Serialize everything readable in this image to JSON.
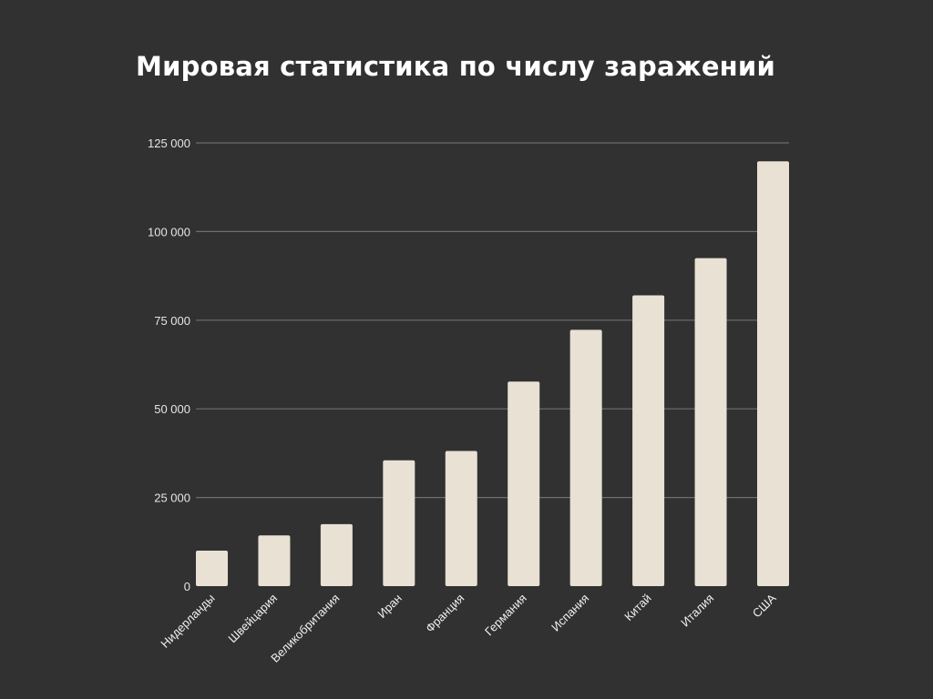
{
  "chart_data": {
    "type": "bar",
    "title": "Мировая статистика по числу заражений",
    "xlabel": "",
    "ylabel": "",
    "categories": [
      "Нидерланды",
      "Швейцария",
      "Великобритания",
      "Иран",
      "Франция",
      "Германия",
      "Испания",
      "Китай",
      "Италия",
      "США"
    ],
    "values": [
      10000,
      14300,
      17500,
      35500,
      38100,
      57700,
      72300,
      82000,
      92500,
      119800
    ],
    "ylim": [
      0,
      125000
    ],
    "yticks": [
      0,
      25000,
      50000,
      75000,
      100000,
      125000
    ],
    "ytick_labels": [
      "0",
      "25 000",
      "50 000",
      "75 000",
      "100 000",
      "125 000"
    ],
    "grid": true,
    "legend": "none",
    "colors": {
      "background": "#313131",
      "bar": "#e8e1d4",
      "grid": "#6e6e6e",
      "text": "#ffffff"
    }
  }
}
